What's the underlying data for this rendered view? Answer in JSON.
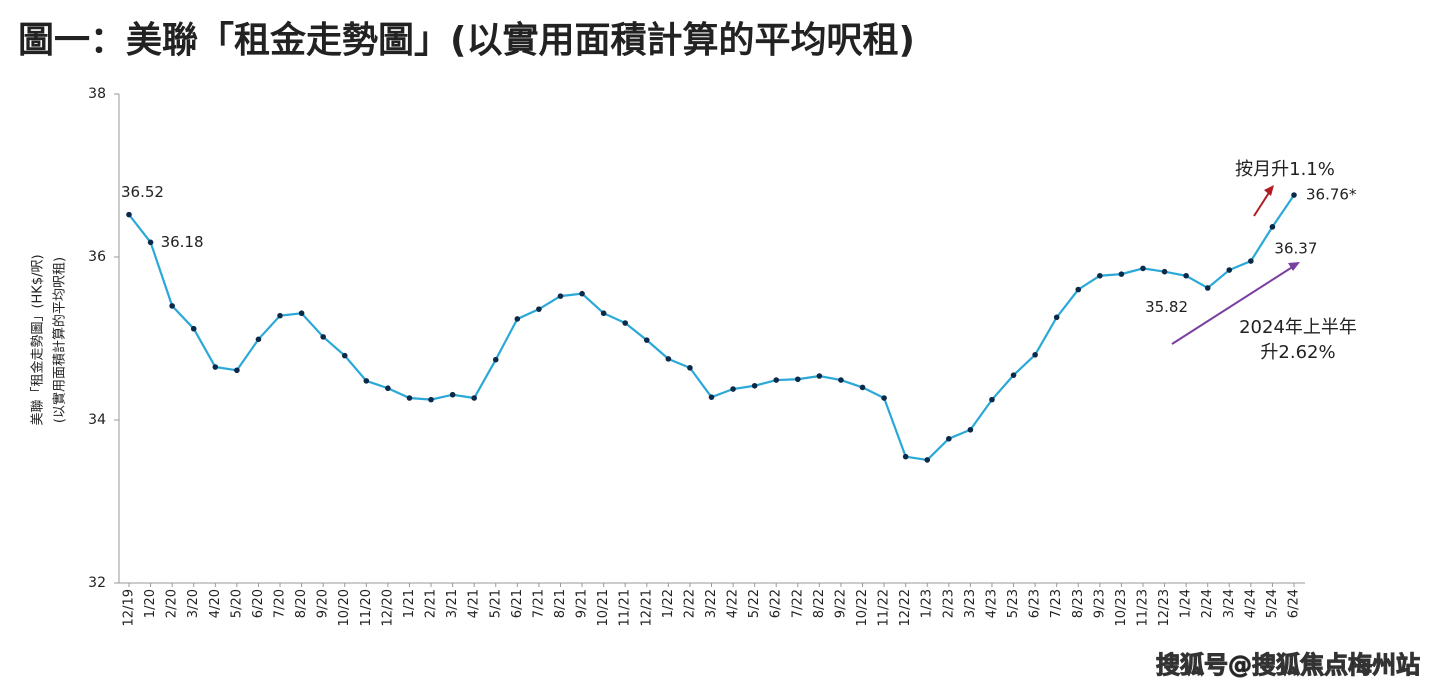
{
  "chart_data": {
    "type": "line",
    "title": "圖一：美聯「租金走勢圖」(以實用面積計算的平均呎租)",
    "y_label": [
      "美聯「租金走勢圖」(HK$/呎)",
      "(以實用面積計算的平均呎租)"
    ],
    "categories": [
      "12/19",
      "1/20",
      "2/20",
      "3/20",
      "4/20",
      "5/20",
      "6/20",
      "7/20",
      "8/20",
      "9/20",
      "10/20",
      "11/20",
      "12/20",
      "1/21",
      "2/21",
      "3/21",
      "4/21",
      "5/21",
      "6/21",
      "7/21",
      "8/21",
      "9/21",
      "10/21",
      "11/21",
      "12/21",
      "1/22",
      "2/22",
      "3/22",
      "4/22",
      "5/22",
      "6/22",
      "7/22",
      "8/22",
      "9/22",
      "10/22",
      "11/22",
      "12/22",
      "1/23",
      "2/23",
      "3/23",
      "4/23",
      "5/23",
      "6/23",
      "7/23",
      "8/23",
      "9/23",
      "10/23",
      "11/23",
      "12/23",
      "1/24",
      "2/24",
      "3/24",
      "4/24",
      "5/24",
      "6/24"
    ],
    "series": [
      {
        "name": "平均呎租",
        "color": "#2aa8d8",
        "marker_color": "#0b2a4a",
        "values": [
          36.52,
          36.18,
          35.4,
          35.12,
          34.65,
          34.61,
          34.99,
          35.28,
          35.31,
          35.02,
          34.79,
          34.48,
          34.39,
          34.27,
          34.25,
          34.31,
          34.27,
          34.74,
          35.24,
          35.36,
          35.52,
          35.55,
          35.31,
          35.19,
          34.98,
          34.75,
          34.64,
          34.28,
          34.38,
          34.42,
          34.49,
          34.5,
          34.54,
          34.49,
          34.4,
          34.27,
          33.55,
          33.51,
          33.77,
          33.88,
          34.25,
          34.55,
          34.8,
          35.26,
          35.6,
          35.77,
          35.79,
          35.86,
          35.82,
          35.77,
          35.62,
          35.84,
          35.95,
          36.37,
          36.76
        ],
        "value_labels": [
          "36.52",
          "36.18",
          null,
          null,
          null,
          null,
          null,
          null,
          null,
          null,
          null,
          null,
          null,
          null,
          null,
          null,
          null,
          null,
          null,
          null,
          null,
          null,
          null,
          null,
          null,
          null,
          null,
          null,
          null,
          null,
          null,
          null,
          null,
          null,
          null,
          null,
          null,
          null,
          null,
          null,
          null,
          null,
          null,
          null,
          null,
          null,
          null,
          null,
          "35.82",
          null,
          null,
          null,
          null,
          "36.37",
          "36.76*"
        ]
      }
    ],
    "ylim": [
      32,
      38
    ],
    "yticks": [
      32,
      34,
      36,
      38
    ],
    "grid": false,
    "annotations": [
      {
        "text": "按月升1.1%",
        "color": "#b01c24"
      },
      {
        "text": [
          "2024年上半年",
          "升2.62%"
        ],
        "color": "#7a3fa0"
      }
    ],
    "watermark": "搜狐号@搜狐焦点梅州站"
  }
}
